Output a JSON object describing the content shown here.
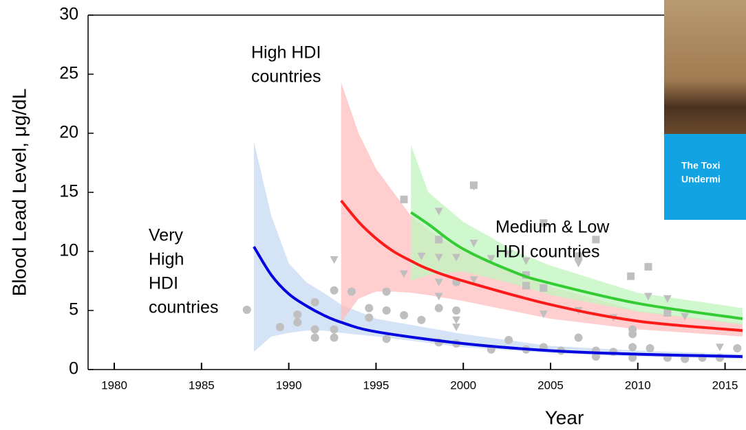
{
  "chart_data": {
    "type": "line",
    "xlabel": "Year",
    "ylabel": "Blood Lead Level, μg/dL",
    "xlim": [
      1978.5,
      2016.2
    ],
    "ylim": [
      0,
      30
    ],
    "xticks": [
      1980,
      1985,
      1990,
      1995,
      2000,
      2005,
      2010,
      2015
    ],
    "yticks": [
      0,
      5,
      10,
      15,
      20,
      25,
      30
    ],
    "annotations": [
      [
        "Very",
        "High",
        "HDI",
        "countries"
      ],
      [
        "High HDI",
        "countries"
      ],
      [
        "Medium & Low",
        "HDI countries"
      ]
    ],
    "inset_text": [
      "The Toxi",
      "Undermi"
    ],
    "fits": [
      {
        "color": "#0000e0",
        "band_color": "#c5d9f1",
        "x": [
          1988,
          1989,
          1990,
          1991,
          1992,
          1993,
          1995,
          2000,
          2005,
          2010,
          2016
        ],
        "values": [
          10.4,
          8.0,
          6.4,
          5.4,
          4.6,
          4.0,
          3.2,
          2.2,
          1.6,
          1.3,
          1.1
        ],
        "upper": [
          19.3,
          13.0,
          9.0,
          7.4,
          6.5,
          5.5,
          4.3,
          3.0,
          2.0,
          1.6,
          1.3
        ],
        "lower": [
          1.5,
          2.8,
          3.1,
          3.3,
          3.3,
          3.1,
          2.8,
          1.9,
          1.4,
          1.1,
          0.9
        ]
      },
      {
        "color": "#ff1a1a",
        "band_color": "#ffbdbd",
        "x": [
          1993,
          1994,
          1995,
          1996,
          1997,
          1998,
          2000,
          2005,
          2010,
          2016
        ],
        "values": [
          14.3,
          12.5,
          11.1,
          10.0,
          9.2,
          8.5,
          7.5,
          5.5,
          4.1,
          3.3
        ],
        "upper": [
          24.3,
          20.0,
          17.0,
          15.0,
          13.0,
          11.8,
          10.0,
          7.0,
          5.0,
          3.9
        ],
        "lower": [
          4.0,
          6.0,
          6.6,
          6.6,
          6.5,
          6.3,
          5.8,
          4.3,
          3.4,
          2.8
        ]
      },
      {
        "color": "#33cc33",
        "band_color": "#bff5bf",
        "x": [
          1997,
          1998,
          2000,
          2003,
          2005,
          2010,
          2016
        ],
        "values": [
          13.3,
          12.3,
          10.2,
          8.2,
          7.3,
          5.6,
          4.3
        ],
        "upper": [
          19.0,
          15.0,
          12.5,
          10.0,
          8.8,
          6.5,
          5.2
        ],
        "lower": [
          7.5,
          8.0,
          8.3,
          7.2,
          6.3,
          4.9,
          3.8
        ]
      }
    ],
    "points": [
      {
        "marker": "circle",
        "color": "#bfbfbf",
        "x": [
          1987.6,
          1989.5,
          1990.5,
          1990.5,
          1991.5,
          1991.5,
          1991.5,
          1992.6,
          1992.6,
          1992.6,
          1993.6,
          1994.6,
          1994.6,
          1995.6,
          1995.6,
          1995.6,
          1996.6,
          1997.6,
          1998.6,
          1998.6,
          1999.6,
          1999.6,
          1999.6,
          2001.6,
          2002.6,
          2003.6,
          2004.6,
          2005.6,
          2006.6,
          2007.6,
          2007.6,
          2008.6,
          2009.7,
          2009.7,
          2009.7,
          2009.7,
          2010.7,
          2011.7,
          2012.7,
          2013.7,
          2014.7,
          2015.7
        ],
        "values": [
          5.06,
          3.6,
          4.65,
          4.0,
          5.7,
          3.4,
          2.7,
          6.7,
          3.4,
          2.7,
          6.6,
          5.2,
          4.4,
          6.6,
          5.0,
          2.6,
          4.6,
          4.2,
          5.2,
          2.3,
          7.4,
          5.0,
          2.2,
          1.7,
          2.5,
          1.7,
          1.9,
          1.6,
          2.7,
          1.1,
          1.6,
          1.5,
          3.4,
          3.0,
          1.9,
          1.0,
          1.8,
          1.0,
          0.9,
          1.0,
          1.0,
          1.8
        ]
      },
      {
        "marker": "square",
        "color": "#bfbfbf",
        "x": [
          1996.6,
          1998.6,
          2000.6,
          2003.6,
          2003.6,
          2004.6,
          2004.6,
          2006.6,
          2007.6,
          2009.6,
          2010.6,
          2011.7
        ],
        "values": [
          14.4,
          11.0,
          15.6,
          8.0,
          7.1,
          12.4,
          6.9,
          9.6,
          11.0,
          7.9,
          8.7,
          4.8
        ]
      },
      {
        "marker": "triangle",
        "color": "#bfbfbf",
        "x": [
          1992.6,
          1996.6,
          1997.6,
          1998.6,
          1998.6,
          1998.6,
          1998.6,
          1999.6,
          1999.6,
          1999.6,
          2000.6,
          2000.6,
          2000.6,
          2001.6,
          2002.6,
          2003.6,
          2004.6,
          2006.6,
          2006.6,
          2008.6,
          2010.6,
          2011.7,
          2012.7,
          2014.7
        ],
        "values": [
          9.3,
          8.1,
          9.6,
          13.4,
          9.5,
          7.4,
          6.2,
          9.5,
          4.2,
          3.6,
          15.5,
          10.7,
          7.6,
          9.4,
          9.8,
          9.2,
          4.7,
          9.0,
          5.0,
          4.4,
          6.2,
          6.0,
          4.5,
          1.9
        ]
      }
    ]
  }
}
